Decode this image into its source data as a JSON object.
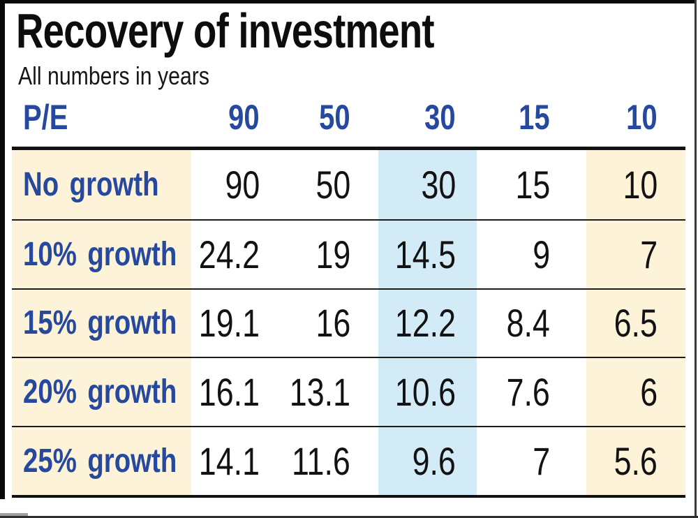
{
  "meta": {
    "title": "Recovery of investment",
    "subtitle": "All numbers in years"
  },
  "chart_data": {
    "type": "table",
    "title": "Recovery of investment",
    "subtitle": "All numbers in years",
    "units": "years",
    "columns": [
      "P/E",
      "90",
      "50",
      "30",
      "15",
      "10"
    ],
    "rows": [
      [
        "No growth",
        90,
        50,
        30,
        15,
        10
      ],
      [
        "10% growth",
        24.2,
        19,
        14.5,
        9,
        7
      ],
      [
        "15% growth",
        19.1,
        16,
        12.2,
        8.4,
        6.5
      ],
      [
        "20% growth",
        16.1,
        13.1,
        10.6,
        7.6,
        6
      ],
      [
        "25% growth",
        14.1,
        11.6,
        9.6,
        7,
        5.6
      ]
    ],
    "highlighted_column": "30",
    "tinted_columns": [
      "P/E",
      "10"
    ],
    "layout": {
      "grid": "horizontal rules only",
      "row_label_color": "#26489e",
      "header_color": "#26489e",
      "highlight_blue": "#d3eaf7",
      "tint_cream": "#fcf3d9"
    }
  },
  "colors": {
    "accent_blue_text": "#26489e",
    "column_highlight_blue": "#d3eaf7",
    "column_tint_cream": "#fcf3d9",
    "rule_black": "#111111",
    "frame_black": "#0a0a0a"
  }
}
